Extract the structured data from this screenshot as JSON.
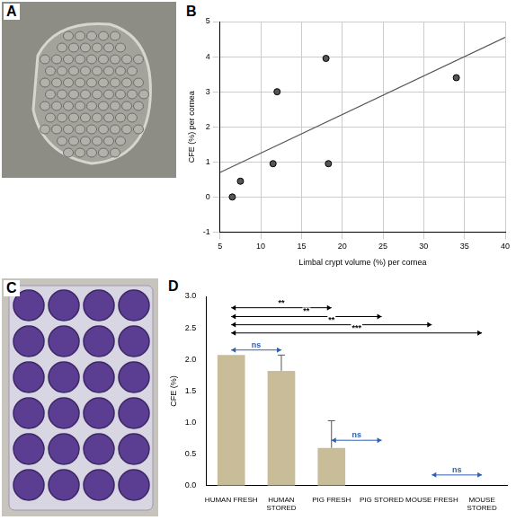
{
  "panel_labels": [
    "A",
    "B",
    "C",
    "D"
  ],
  "chart_data": [
    {
      "type": "scatter",
      "x_label": "Limbal crypt volume (%) per cornea",
      "y_label": "CFE (%) per cornea",
      "x": [
        6.5,
        7.5,
        11.5,
        12,
        18,
        18.3,
        34
      ],
      "values": [
        0,
        0.45,
        0.95,
        3.0,
        3.95,
        0.95,
        3.4
      ],
      "color": "#555555",
      "marker": "circle",
      "trend_line": {
        "x": [
          5,
          40
        ],
        "values": [
          0.7,
          4.55
        ],
        "color": "#555555"
      },
      "xlim": [
        5,
        40
      ],
      "xticks": [
        5,
        10,
        15,
        20,
        25,
        30,
        35,
        40
      ],
      "ylim": [
        -1,
        5
      ],
      "yticks": [
        -1,
        0,
        1,
        2,
        3,
        4,
        5
      ],
      "grid": true
    },
    {
      "type": "bar",
      "y_label": "CFE (%)",
      "categories": [
        "HUMAN FRESH",
        "HUMAN STORED",
        "PIG FRESH",
        "PIG STORED",
        "MOUSE FRESH",
        "MOUSE STORED"
      ],
      "values": [
        2.07,
        1.82,
        0.6,
        0,
        0,
        0
      ],
      "errors": [
        0,
        0.25,
        0.43,
        0,
        0,
        0
      ],
      "color": "#c8bd98",
      "ylim": [
        0,
        3.0
      ],
      "yticks": [
        {
          "value": 0,
          "label": "0.0"
        },
        {
          "value": 0.5,
          "label": "0.5"
        },
        {
          "value": 1,
          "label": "1.0"
        },
        {
          "value": 1.5,
          "label": "1.5"
        },
        {
          "value": 2,
          "label": "2.0"
        },
        {
          "value": 2.5,
          "label": "2.5"
        },
        {
          "value": 3,
          "label": "3.0"
        }
      ],
      "grid": false,
      "comparisons": [
        {
          "from": "HUMAN FRESH",
          "to": "PIG FRESH",
          "y": 2.82,
          "label": "**",
          "color": "#000000"
        },
        {
          "from": "HUMAN FRESH",
          "to": "PIG STORED",
          "y": 2.68,
          "label": "**",
          "color": "#000000"
        },
        {
          "from": "HUMAN FRESH",
          "to": "MOUSE FRESH",
          "y": 2.55,
          "label": "**",
          "color": "#000000"
        },
        {
          "from": "HUMAN FRESH",
          "to": "MOUSE STORED",
          "y": 2.42,
          "label": "***",
          "color": "#000000"
        },
        {
          "from": "HUMAN FRESH",
          "to": "HUMAN STORED",
          "y": 2.15,
          "label": "ns",
          "color": "#2f5fb3"
        },
        {
          "from": "PIG FRESH",
          "to": "PIG STORED",
          "y": 0.72,
          "label": "ns",
          "color": "#2f5fb3"
        },
        {
          "from": "MOUSE FRESH",
          "to": "MOUSE STORED",
          "y": 0.17,
          "label": "ns",
          "color": "#2f5fb3"
        }
      ]
    }
  ]
}
